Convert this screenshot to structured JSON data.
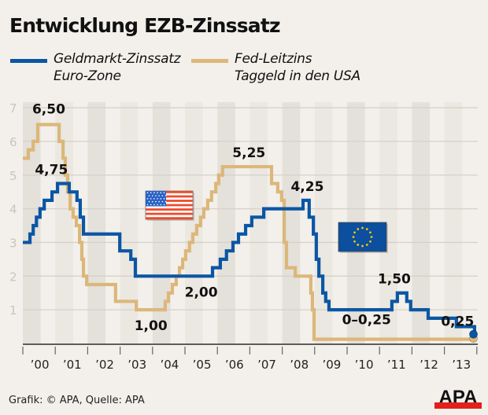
{
  "header": {
    "title": "Entwicklung EZB-Zinssatz"
  },
  "legend": [
    {
      "line1": "Geldmarkt-Zinssatz",
      "line2": "Euro-Zone",
      "color": "#0b56a4"
    },
    {
      "line1": "Fed-Leitzins",
      "line2": "Taggeld in den USA",
      "color": "#dcb77a"
    }
  ],
  "footer": {
    "source": "Grafik: © APA, Quelle: APA",
    "logo_text": "APA",
    "logo_colors": {
      "text": "#111111",
      "bar": "#e3201b"
    }
  },
  "flags": [
    {
      "name": "usa-flag",
      "country": "USA"
    },
    {
      "name": "eu-flag",
      "country": "EU"
    }
  ],
  "chart_data": {
    "type": "line",
    "step": true,
    "title": "Entwicklung EZB-Zinssatz",
    "xlabel": "",
    "ylabel": "",
    "xlim": [
      2000,
      2014
    ],
    "ylim": [
      0,
      7
    ],
    "yticks": [
      1,
      2,
      3,
      4,
      5,
      6,
      7
    ],
    "ytick_labels": [
      "1",
      "2",
      "3",
      "4",
      "5",
      "6",
      "7"
    ],
    "xtick_labels": [
      "’00",
      "’01",
      "’02",
      "’03",
      "’04",
      "’05",
      "’06",
      "’07",
      "’08",
      "’09",
      "’10",
      "’11",
      "’12",
      "’13"
    ],
    "grid": true,
    "alternating_year_bands": true,
    "series": [
      {
        "name": "Geldmarkt-Zinssatz Euro-Zone",
        "color": "#0b56a4",
        "points": [
          [
            2000.0,
            3.0
          ],
          [
            2000.22,
            3.25
          ],
          [
            2000.32,
            3.5
          ],
          [
            2000.42,
            3.75
          ],
          [
            2000.53,
            4.0
          ],
          [
            2000.66,
            4.25
          ],
          [
            2000.9,
            4.5
          ],
          [
            2001.07,
            4.75
          ],
          [
            2001.43,
            4.5
          ],
          [
            2001.67,
            4.25
          ],
          [
            2001.77,
            3.75
          ],
          [
            2001.87,
            3.25
          ],
          [
            2002.99,
            2.75
          ],
          [
            2003.33,
            2.5
          ],
          [
            2003.47,
            2.0
          ],
          [
            2005.85,
            2.25
          ],
          [
            2006.09,
            2.5
          ],
          [
            2006.28,
            2.75
          ],
          [
            2006.48,
            3.0
          ],
          [
            2006.65,
            3.25
          ],
          [
            2006.87,
            3.5
          ],
          [
            2007.06,
            3.75
          ],
          [
            2007.43,
            4.0
          ],
          [
            2008.64,
            4.25
          ],
          [
            2008.83,
            3.75
          ],
          [
            2008.96,
            3.25
          ],
          [
            2009.05,
            2.5
          ],
          [
            2009.13,
            2.0
          ],
          [
            2009.25,
            1.5
          ],
          [
            2009.34,
            1.25
          ],
          [
            2009.44,
            1.0
          ],
          [
            2011.38,
            1.25
          ],
          [
            2011.55,
            1.5
          ],
          [
            2011.84,
            1.25
          ],
          [
            2011.96,
            1.0
          ],
          [
            2012.5,
            0.75
          ],
          [
            2013.37,
            0.5
          ],
          [
            2013.93,
            0.25
          ],
          [
            2013.97,
            0.25
          ]
        ],
        "annotations": [
          {
            "label": "4,75",
            "x": 2001.1,
            "y": 4.75
          },
          {
            "label": "2,00",
            "x": 2005.5,
            "y": 2.0
          },
          {
            "label": "4,25",
            "x": 2008.7,
            "y": 4.25
          },
          {
            "label": "1,50",
            "x": 2011.6,
            "y": 1.5
          },
          {
            "label": "0,25",
            "x": 2013.6,
            "y": 0.25
          }
        ]
      },
      {
        "name": "Fed-Leitzins Taggeld in den USA",
        "color": "#dcb77a",
        "points": [
          [
            2000.0,
            5.5
          ],
          [
            2000.17,
            5.75
          ],
          [
            2000.32,
            6.0
          ],
          [
            2000.46,
            6.5
          ],
          [
            2001.12,
            6.0
          ],
          [
            2001.24,
            5.5
          ],
          [
            2001.31,
            5.0
          ],
          [
            2001.38,
            4.5
          ],
          [
            2001.46,
            4.0
          ],
          [
            2001.55,
            3.75
          ],
          [
            2001.65,
            3.5
          ],
          [
            2001.75,
            3.0
          ],
          [
            2001.82,
            2.5
          ],
          [
            2001.87,
            2.0
          ],
          [
            2001.97,
            1.75
          ],
          [
            2002.86,
            1.25
          ],
          [
            2003.5,
            1.0
          ],
          [
            2004.39,
            1.25
          ],
          [
            2004.49,
            1.5
          ],
          [
            2004.61,
            1.75
          ],
          [
            2004.73,
            2.0
          ],
          [
            2004.83,
            2.25
          ],
          [
            2004.93,
            2.5
          ],
          [
            2005.02,
            2.75
          ],
          [
            2005.14,
            3.0
          ],
          [
            2005.24,
            3.25
          ],
          [
            2005.36,
            3.5
          ],
          [
            2005.48,
            3.75
          ],
          [
            2005.58,
            4.0
          ],
          [
            2005.7,
            4.25
          ],
          [
            2005.82,
            4.5
          ],
          [
            2005.95,
            4.75
          ],
          [
            2006.04,
            5.0
          ],
          [
            2006.16,
            5.25
          ],
          [
            2007.67,
            4.75
          ],
          [
            2007.86,
            4.5
          ],
          [
            2007.98,
            4.25
          ],
          [
            2008.06,
            3.0
          ],
          [
            2008.13,
            2.25
          ],
          [
            2008.4,
            2.0
          ],
          [
            2008.88,
            1.5
          ],
          [
            2008.93,
            1.0
          ],
          [
            2008.98,
            0.125
          ],
          [
            2013.97,
            0.125
          ]
        ],
        "annotations": [
          {
            "label": "6,50",
            "x": 2000.8,
            "y": 6.5
          },
          {
            "label": "1,00",
            "x": 2003.9,
            "y": 1.0
          },
          {
            "label": "5,25",
            "x": 2006.9,
            "y": 5.25
          },
          {
            "label": "0–0,25",
            "x": 2010.6,
            "y": 0.25
          }
        ]
      }
    ]
  }
}
